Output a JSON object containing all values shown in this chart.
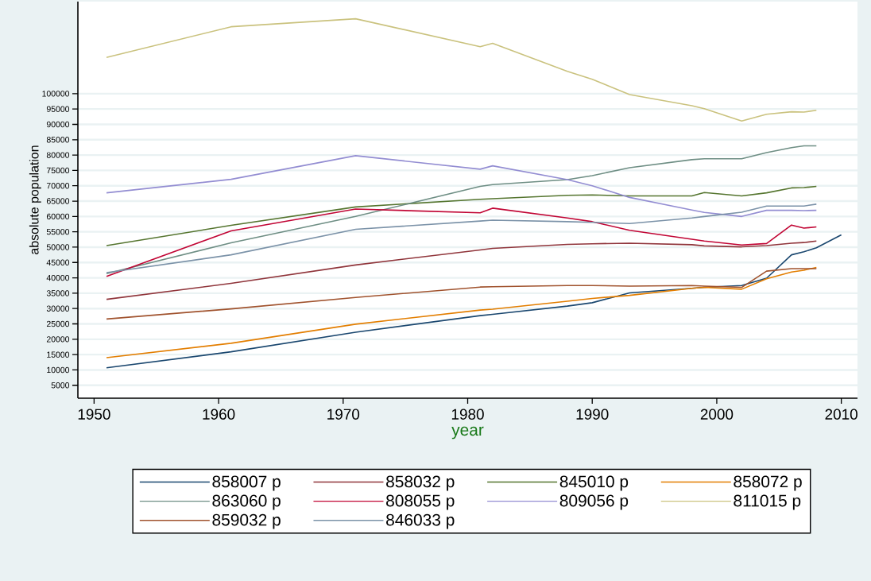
{
  "chart_data": {
    "type": "line",
    "xlabel": "year",
    "ylabel": "absolute population",
    "x": [
      1951,
      1961,
      1971,
      1981,
      1982,
      1988,
      1990,
      1993,
      1998,
      1999,
      2002,
      2004,
      2006,
      2007,
      2008,
      2010
    ],
    "series": [
      {
        "name": "858007 p",
        "color": "#1a476f",
        "values": [
          10700,
          15900,
          22300,
          27700,
          28100,
          30800,
          31900,
          35100,
          36600,
          36900,
          37500,
          39900,
          47500,
          48500,
          49800,
          54000
        ]
      },
      {
        "name": "858032 p",
        "color": "#90353b",
        "values": [
          33000,
          38200,
          44200,
          49100,
          49600,
          50900,
          51100,
          51300,
          50800,
          50400,
          50100,
          50500,
          51300,
          51500,
          52000,
          null
        ]
      },
      {
        "name": "845010 p",
        "color": "#55752f",
        "values": [
          50500,
          57100,
          63100,
          65600,
          65800,
          66900,
          67000,
          66700,
          66700,
          67800,
          66700,
          67700,
          69300,
          69400,
          69800,
          null
        ]
      },
      {
        "name": "858072 p",
        "color": "#e37e00",
        "values": [
          14000,
          18700,
          24900,
          29500,
          29800,
          32400,
          33300,
          34300,
          36600,
          36900,
          36300,
          39700,
          41900,
          42500,
          43400,
          null
        ]
      },
      {
        "name": "863060 p",
        "color": "#6e8e84",
        "values": [
          41400,
          51400,
          60000,
          69800,
          70400,
          72000,
          73300,
          75900,
          78500,
          78800,
          78800,
          80800,
          82400,
          83000,
          83000,
          null
        ]
      },
      {
        "name": "808055 p",
        "color": "#c10534",
        "values": [
          40500,
          55300,
          62400,
          61200,
          62700,
          59500,
          58300,
          55500,
          52600,
          52000,
          50700,
          51200,
          57200,
          56200,
          56600,
          null
        ]
      },
      {
        "name": "809056 p",
        "color": "#938dd2",
        "values": [
          67700,
          72100,
          79800,
          75400,
          76500,
          72000,
          70000,
          66200,
          62100,
          61300,
          60000,
          62000,
          62000,
          61900,
          62000,
          null
        ]
      },
      {
        "name": "811015 p",
        "color": "#cac27e",
        "values": [
          111800,
          121800,
          124400,
          115300,
          116400,
          107300,
          104700,
          99700,
          96100,
          95100,
          91100,
          93300,
          94100,
          94000,
          94600,
          null
        ]
      },
      {
        "name": "859032 p",
        "color": "#a0522d",
        "values": [
          26600,
          29900,
          33600,
          37000,
          37100,
          37500,
          37500,
          37300,
          37500,
          37300,
          36900,
          42200,
          43000,
          43000,
          43000,
          null
        ]
      },
      {
        "name": "846033 p",
        "color": "#7b92a8",
        "values": [
          41700,
          47500,
          55800,
          58500,
          58800,
          58300,
          58100,
          57700,
          59500,
          60000,
          61400,
          63400,
          63400,
          63400,
          64000,
          null
        ]
      }
    ],
    "xlim": [
      1948.7,
      2011.3
    ],
    "ylim": [
      800,
      130000
    ],
    "xticks": [
      1950,
      1960,
      1970,
      1980,
      1990,
      2000,
      2010
    ],
    "yticks": [
      5000,
      10000,
      15000,
      20000,
      25000,
      30000,
      35000,
      40000,
      45000,
      50000,
      55000,
      60000,
      65000,
      70000,
      75000,
      80000,
      85000,
      90000,
      95000,
      100000
    ],
    "grid": "y",
    "legend": "bottom",
    "marker": "none",
    "line_style": "solid"
  }
}
